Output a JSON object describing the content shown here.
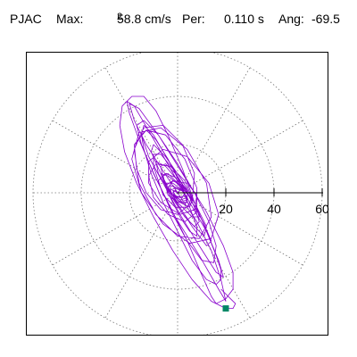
{
  "header": {
    "site": "PJAC",
    "max_label": "Max:",
    "max_value": "58.8 cm/s",
    "max_unit_exp": "2",
    "per_label": "Per:",
    "per_value": "0.110 s",
    "ang_label": "Ang:",
    "ang_value": "-69.5"
  },
  "chart_data": {
    "type": "line",
    "polar": true,
    "title": "",
    "radial_ticks": [
      20,
      40,
      60
    ],
    "radial_tick_labels": [
      "20",
      "40",
      "60"
    ],
    "radial_range": [
      0,
      60
    ],
    "grid": true,
    "grid_style": "dotted",
    "angular_grid_step_deg": 30,
    "colors": {
      "trace": "#8800cc",
      "end_marker": "#008866",
      "grid": "#777777",
      "axis": "#000000"
    },
    "end_point": {
      "x": 20,
      "y": -48
    },
    "series": [
      {
        "values": [
          {
            "x": 0,
            "y": 0
          },
          {
            "x": 8,
            "y": -12
          },
          {
            "x": 14,
            "y": -24
          },
          {
            "x": 18,
            "y": -36
          },
          {
            "x": 20,
            "y": -45
          },
          {
            "x": 17,
            "y": -40
          },
          {
            "x": 9,
            "y": -26
          },
          {
            "x": -1,
            "y": -10
          },
          {
            "x": -9,
            "y": 6
          },
          {
            "x": -16,
            "y": 22
          },
          {
            "x": -20,
            "y": 33
          },
          {
            "x": -21,
            "y": 38
          },
          {
            "x": -18,
            "y": 36
          },
          {
            "x": -11,
            "y": 24
          },
          {
            "x": -3,
            "y": 10
          },
          {
            "x": 5,
            "y": -4
          },
          {
            "x": 12,
            "y": -16
          },
          {
            "x": 17,
            "y": -28
          },
          {
            "x": 19,
            "y": -35
          },
          {
            "x": 16,
            "y": -33
          },
          {
            "x": 9,
            "y": -22
          },
          {
            "x": 1,
            "y": -9
          },
          {
            "x": -6,
            "y": 4
          },
          {
            "x": -12,
            "y": 15
          },
          {
            "x": -15,
            "y": 24
          },
          {
            "x": -14,
            "y": 28
          },
          {
            "x": -10,
            "y": 24
          },
          {
            "x": -3,
            "y": 12
          },
          {
            "x": 5,
            "y": -2
          },
          {
            "x": 11,
            "y": -13
          },
          {
            "x": 14,
            "y": -20
          },
          {
            "x": 12,
            "y": -22
          },
          {
            "x": 6,
            "y": -14
          },
          {
            "x": -1,
            "y": -3
          },
          {
            "x": -7,
            "y": 8
          },
          {
            "x": -11,
            "y": 17
          },
          {
            "x": -10,
            "y": 20
          },
          {
            "x": -5,
            "y": 15
          },
          {
            "x": 2,
            "y": 5
          },
          {
            "x": 8,
            "y": -6
          },
          {
            "x": 12,
            "y": -14
          },
          {
            "x": 11,
            "y": -18
          },
          {
            "x": 5,
            "y": -12
          },
          {
            "x": -2,
            "y": -2
          },
          {
            "x": -8,
            "y": 8
          },
          {
            "x": -9,
            "y": 13
          },
          {
            "x": -5,
            "y": 11
          },
          {
            "x": 1,
            "y": 4
          },
          {
            "x": 7,
            "y": -4
          },
          {
            "x": 9,
            "y": -10
          },
          {
            "x": 6,
            "y": -10
          },
          {
            "x": 0,
            "y": -4
          },
          {
            "x": -5,
            "y": 3
          },
          {
            "x": -7,
            "y": 8
          },
          {
            "x": -4,
            "y": 7
          },
          {
            "x": 2,
            "y": 2
          },
          {
            "x": 6,
            "y": -3
          },
          {
            "x": 5,
            "y": -6
          },
          {
            "x": 1,
            "y": -4
          },
          {
            "x": -4,
            "y": 1
          },
          {
            "x": -5,
            "y": 4
          },
          {
            "x": -2,
            "y": 4
          },
          {
            "x": 2,
            "y": 1
          },
          {
            "x": 4,
            "y": -2
          },
          {
            "x": 1,
            "y": -3
          },
          {
            "x": -3,
            "y": 0
          },
          {
            "x": -3,
            "y": 3
          },
          {
            "x": 0,
            "y": 2
          },
          {
            "x": 3,
            "y": 0
          },
          {
            "x": 2,
            "y": -2
          },
          {
            "x": -2,
            "y": -1
          },
          {
            "x": -4,
            "y": 2
          },
          {
            "x": -2,
            "y": 5
          },
          {
            "x": 4,
            "y": 4
          },
          {
            "x": 8,
            "y": -1
          },
          {
            "x": 7,
            "y": -7
          },
          {
            "x": 1,
            "y": -9
          },
          {
            "x": -7,
            "y": -4
          },
          {
            "x": -12,
            "y": 4
          },
          {
            "x": -12,
            "y": 13
          },
          {
            "x": -6,
            "y": 18
          },
          {
            "x": 4,
            "y": 15
          },
          {
            "x": 13,
            "y": 4
          },
          {
            "x": 17,
            "y": -9
          },
          {
            "x": 14,
            "y": -19
          },
          {
            "x": 5,
            "y": -21
          },
          {
            "x": -6,
            "y": -13
          },
          {
            "x": -15,
            "y": 0
          },
          {
            "x": -19,
            "y": 14
          },
          {
            "x": -16,
            "y": 25
          },
          {
            "x": -7,
            "y": 27
          },
          {
            "x": 4,
            "y": 18
          },
          {
            "x": 12,
            "y": 4
          },
          {
            "x": 14,
            "y": -10
          },
          {
            "x": 9,
            "y": -19
          },
          {
            "x": 0,
            "y": -18
          },
          {
            "x": -9,
            "y": -9
          },
          {
            "x": -16,
            "y": 4
          },
          {
            "x": -18,
            "y": 18
          },
          {
            "x": -14,
            "y": 27
          },
          {
            "x": -6,
            "y": 28
          },
          {
            "x": 2,
            "y": 20
          },
          {
            "x": 7,
            "y": 8
          },
          {
            "x": 6,
            "y": -4
          },
          {
            "x": 0,
            "y": -9
          },
          {
            "x": -7,
            "y": -7
          },
          {
            "x": -13,
            "y": 0
          },
          {
            "x": -17,
            "y": 10
          },
          {
            "x": -18,
            "y": 20
          },
          {
            "x": -13,
            "y": 26
          },
          {
            "x": -5,
            "y": 24
          },
          {
            "x": 3,
            "y": 14
          },
          {
            "x": 8,
            "y": 2
          },
          {
            "x": 8,
            "y": -8
          },
          {
            "x": 3,
            "y": -12
          },
          {
            "x": -4,
            "y": -9
          },
          {
            "x": -10,
            "y": -2
          },
          {
            "x": -12,
            "y": 7
          },
          {
            "x": -9,
            "y": 12
          },
          {
            "x": -3,
            "y": 11
          },
          {
            "x": 3,
            "y": 5
          },
          {
            "x": 6,
            "y": -2
          },
          {
            "x": 4,
            "y": -6
          },
          {
            "x": -1,
            "y": -6
          },
          {
            "x": -6,
            "y": -1
          },
          {
            "x": -8,
            "y": 5
          },
          {
            "x": -5,
            "y": 8
          },
          {
            "x": 0,
            "y": 6
          },
          {
            "x": 4,
            "y": 1
          },
          {
            "x": 4,
            "y": -3
          },
          {
            "x": 0,
            "y": -4
          },
          {
            "x": -4,
            "y": -1
          },
          {
            "x": -5,
            "y": 3
          },
          {
            "x": -2,
            "y": 5
          },
          {
            "x": 2,
            "y": 3
          },
          {
            "x": 3,
            "y": -1
          },
          {
            "x": 1,
            "y": -2
          },
          {
            "x": -2,
            "y": -1
          },
          {
            "x": -3,
            "y": 1
          },
          {
            "x": -1,
            "y": 2
          },
          {
            "x": 1,
            "y": 1
          },
          {
            "x": 0,
            "y": 0
          }
        ]
      },
      {
        "values": [
          {
            "x": 0,
            "y": 0
          },
          {
            "x": -6,
            "y": 9
          },
          {
            "x": -13,
            "y": 20
          },
          {
            "x": -18,
            "y": 30
          },
          {
            "x": -20,
            "y": 37
          },
          {
            "x": -16,
            "y": 35
          },
          {
            "x": -8,
            "y": 24
          },
          {
            "x": 2,
            "y": 8
          },
          {
            "x": 12,
            "y": -8
          },
          {
            "x": 19,
            "y": -22
          },
          {
            "x": 23,
            "y": -33
          },
          {
            "x": 23,
            "y": -40
          },
          {
            "x": 20,
            "y": -44
          },
          {
            "x": 16,
            "y": -46
          },
          {
            "x": 14,
            "y": -43
          },
          {
            "x": 10,
            "y": -34
          },
          {
            "x": 4,
            "y": -20
          },
          {
            "x": -3,
            "y": -6
          },
          {
            "x": -10,
            "y": 8
          },
          {
            "x": -15,
            "y": 20
          },
          {
            "x": -17,
            "y": 28
          },
          {
            "x": -14,
            "y": 30
          },
          {
            "x": -8,
            "y": 24
          },
          {
            "x": 0,
            "y": 12
          },
          {
            "x": 7,
            "y": 0
          },
          {
            "x": 13,
            "y": -12
          },
          {
            "x": 16,
            "y": -22
          },
          {
            "x": 15,
            "y": -29
          },
          {
            "x": 10,
            "y": -28
          },
          {
            "x": 4,
            "y": -20
          },
          {
            "x": -2,
            "y": -9
          },
          {
            "x": -7,
            "y": 2
          },
          {
            "x": -10,
            "y": 11
          },
          {
            "x": -10,
            "y": 16
          },
          {
            "x": -7,
            "y": 16
          },
          {
            "x": -2,
            "y": 10
          },
          {
            "x": 3,
            "y": 2
          },
          {
            "x": 7,
            "y": -6
          },
          {
            "x": 9,
            "y": -12
          },
          {
            "x": 7,
            "y": -14
          },
          {
            "x": 3,
            "y": -10
          },
          {
            "x": -1,
            "y": -4
          },
          {
            "x": -5,
            "y": 3
          },
          {
            "x": -6,
            "y": 7
          },
          {
            "x": -4,
            "y": 8
          },
          {
            "x": 0,
            "y": 4
          },
          {
            "x": 3,
            "y": -1
          },
          {
            "x": 4,
            "y": -4
          },
          {
            "x": 2,
            "y": -4
          },
          {
            "x": -1,
            "y": -1
          },
          {
            "x": -2,
            "y": 1
          },
          {
            "x": 0,
            "y": 0
          }
        ]
      },
      {
        "values": [
          {
            "x": 18,
            "y": -40
          },
          {
            "x": 22,
            "y": -44
          },
          {
            "x": 24,
            "y": -46
          },
          {
            "x": 23,
            "y": -48
          },
          {
            "x": 20,
            "y": -48
          },
          {
            "x": 14,
            "y": -45
          },
          {
            "x": 6,
            "y": -36
          },
          {
            "x": -2,
            "y": -24
          },
          {
            "x": -10,
            "y": -10
          },
          {
            "x": -17,
            "y": 4
          },
          {
            "x": -22,
            "y": 17
          },
          {
            "x": -24,
            "y": 28
          },
          {
            "x": -23,
            "y": 36
          },
          {
            "x": -19,
            "y": 40
          },
          {
            "x": -14,
            "y": 40
          },
          {
            "x": -9,
            "y": 34
          },
          {
            "x": -4,
            "y": 24
          },
          {
            "x": 2,
            "y": 10
          },
          {
            "x": 7,
            "y": -4
          },
          {
            "x": 12,
            "y": -16
          },
          {
            "x": 16,
            "y": -26
          },
          {
            "x": 18,
            "y": -32
          },
          {
            "x": 18,
            "y": -36
          },
          {
            "x": 16,
            "y": -38
          },
          {
            "x": 12,
            "y": -36
          },
          {
            "x": 6,
            "y": -28
          },
          {
            "x": 0,
            "y": -16
          },
          {
            "x": -6,
            "y": -4
          },
          {
            "x": -11,
            "y": 8
          },
          {
            "x": -14,
            "y": 18
          },
          {
            "x": -15,
            "y": 24
          },
          {
            "x": -13,
            "y": 26
          },
          {
            "x": -9,
            "y": 22
          },
          {
            "x": -4,
            "y": 14
          },
          {
            "x": 1,
            "y": 4
          },
          {
            "x": 5,
            "y": -6
          },
          {
            "x": 8,
            "y": -14
          },
          {
            "x": 8,
            "y": -18
          },
          {
            "x": 5,
            "y": -16
          },
          {
            "x": 1,
            "y": -10
          },
          {
            "x": -3,
            "y": -2
          },
          {
            "x": -6,
            "y": 6
          },
          {
            "x": -7,
            "y": 11
          },
          {
            "x": -5,
            "y": 12
          },
          {
            "x": -1,
            "y": 8
          },
          {
            "x": 2,
            "y": 2
          },
          {
            "x": 4,
            "y": -3
          },
          {
            "x": 3,
            "y": -5
          },
          {
            "x": 0,
            "y": -3
          },
          {
            "x": -2,
            "y": 0
          },
          {
            "x": -1,
            "y": 1
          },
          {
            "x": 0,
            "y": 0
          }
        ]
      }
    ]
  }
}
